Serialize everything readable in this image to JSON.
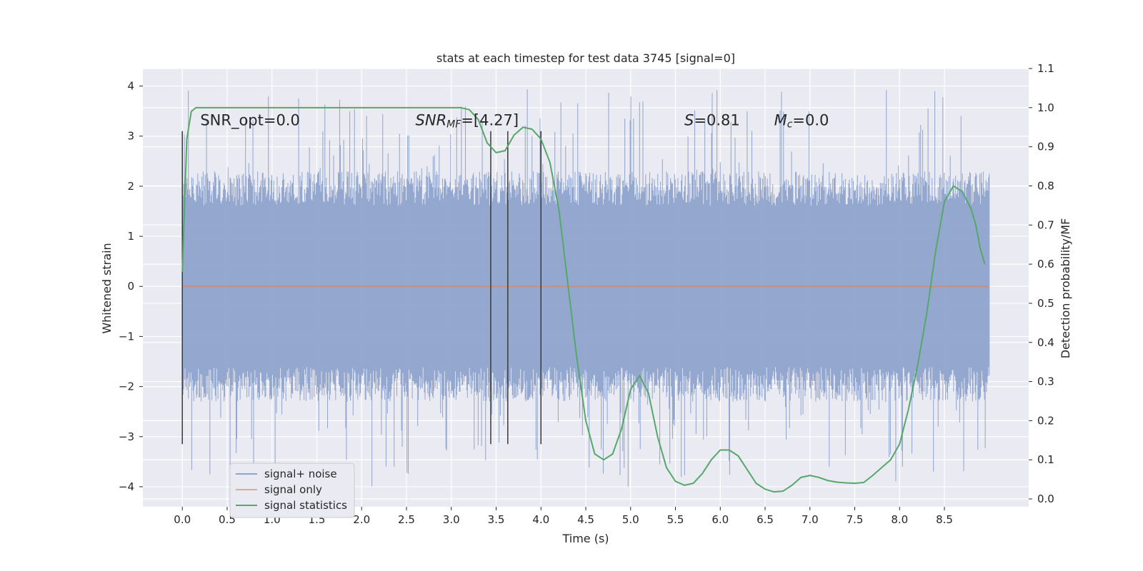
{
  "chart_data": {
    "type": "line",
    "title": "stats at each timestep for test data 3745 [signal=0]",
    "xlabel": "Time (s)",
    "ylabel": "Whitened strain",
    "y2label": "Detection probability/MF",
    "xlim": [
      -0.44,
      9.44
    ],
    "ylim": [
      -4.4,
      4.35
    ],
    "y2lim": [
      -0.02,
      1.1
    ],
    "xticks": [
      0.0,
      0.5,
      1.0,
      1.5,
      2.0,
      2.5,
      3.0,
      3.5,
      4.0,
      4.5,
      5.0,
      5.5,
      6.0,
      6.5,
      7.0,
      7.5,
      8.0,
      8.5
    ],
    "xtick_labels": [
      "0.0",
      "0.5",
      "1.0",
      "1.5",
      "2.0",
      "2.5",
      "3.0",
      "3.5",
      "4.0",
      "4.5",
      "5.0",
      "5.5",
      "6.0",
      "6.5",
      "7.0",
      "7.5",
      "8.0",
      "8.5"
    ],
    "yticks": [
      4,
      3,
      2,
      1,
      0,
      -1,
      -2,
      -3,
      -4
    ],
    "ytick_labels": [
      "4",
      "3",
      "2",
      "1",
      "0",
      "−1",
      "−2",
      "−3",
      "−4"
    ],
    "y2ticks": [
      1.1,
      1.0,
      0.9,
      0.8,
      0.7,
      0.6,
      0.5,
      0.4,
      0.3,
      0.2,
      0.1,
      0.0
    ],
    "y2tick_labels": [
      "1.1",
      "1.0",
      "0.9",
      "0.8",
      "0.7",
      "0.6",
      "0.5",
      "0.4",
      "0.3",
      "0.2",
      "0.1",
      "0.0"
    ],
    "grid": true,
    "legend_position": "lower-left",
    "noise_seed": 3745,
    "noise_time_range": [
      0.0,
      9.0
    ],
    "noise_envelope": {
      "typical_max": 2.3,
      "peak_max": 3.95,
      "typical_min": -2.3,
      "peak_min": -4.0
    },
    "series": [
      {
        "name": "signal+ noise",
        "color": "#8fa4cc",
        "axis": "left",
        "kind": "noise_band"
      },
      {
        "name": "signal only",
        "color": "#dd8452",
        "axis": "left",
        "x": [
          0.0,
          9.0
        ],
        "y": [
          0.0,
          0.0
        ]
      },
      {
        "name": "signal statistics",
        "color": "#55a868",
        "axis": "right",
        "x": [
          0.0,
          0.05,
          0.1,
          0.15,
          0.2,
          0.3,
          0.5,
          1.0,
          1.5,
          2.0,
          2.5,
          3.0,
          3.1,
          3.2,
          3.3,
          3.4,
          3.5,
          3.6,
          3.7,
          3.8,
          3.9,
          4.0,
          4.1,
          4.2,
          4.3,
          4.4,
          4.5,
          4.6,
          4.7,
          4.8,
          4.9,
          5.0,
          5.1,
          5.2,
          5.3,
          5.4,
          5.5,
          5.6,
          5.7,
          5.8,
          5.9,
          6.0,
          6.1,
          6.2,
          6.3,
          6.4,
          6.5,
          6.6,
          6.7,
          6.8,
          6.9,
          7.0,
          7.1,
          7.2,
          7.3,
          7.4,
          7.5,
          7.6,
          7.7,
          7.8,
          7.9,
          8.0,
          8.1,
          8.2,
          8.3,
          8.4,
          8.5,
          8.6,
          8.7,
          8.8,
          8.85,
          8.9,
          8.95
        ],
        "y": [
          0.58,
          0.92,
          0.99,
          1.0,
          1.0,
          1.0,
          1.0,
          1.0,
          1.0,
          1.0,
          1.0,
          1.0,
          1.0,
          0.995,
          0.97,
          0.91,
          0.885,
          0.89,
          0.93,
          0.95,
          0.945,
          0.92,
          0.86,
          0.74,
          0.55,
          0.36,
          0.2,
          0.115,
          0.1,
          0.115,
          0.18,
          0.28,
          0.315,
          0.27,
          0.16,
          0.08,
          0.045,
          0.035,
          0.04,
          0.065,
          0.1,
          0.125,
          0.125,
          0.11,
          0.075,
          0.04,
          0.025,
          0.018,
          0.02,
          0.035,
          0.055,
          0.06,
          0.055,
          0.047,
          0.043,
          0.041,
          0.04,
          0.042,
          0.06,
          0.08,
          0.1,
          0.14,
          0.23,
          0.34,
          0.47,
          0.63,
          0.76,
          0.8,
          0.785,
          0.74,
          0.7,
          0.64,
          0.6
        ]
      }
    ],
    "event_markers": {
      "x": [
        0.0,
        3.44,
        3.63,
        4.0
      ],
      "y_range": [
        -3.15,
        3.1
      ]
    },
    "annotations": [
      {
        "x": 0.2,
        "y": 3.1,
        "parts": [
          {
            "text": "SNR_opt=0.0",
            "italic": false
          }
        ]
      },
      {
        "x": 2.6,
        "y": 3.1,
        "parts": [
          {
            "text": "SNR",
            "italic": true
          },
          {
            "text": "MF",
            "italic": true,
            "sub": true
          },
          {
            "text": "=[4.27]",
            "italic": false
          }
        ]
      },
      {
        "x": 5.6,
        "y": 3.1,
        "parts": [
          {
            "text": "S",
            "italic": true
          },
          {
            "text": "=0.81",
            "italic": false
          }
        ]
      },
      {
        "x": 6.6,
        "y": 3.1,
        "parts": [
          {
            "text": "M",
            "italic": true
          },
          {
            "text": "c",
            "italic": true,
            "sub": true
          },
          {
            "text": "=0.0",
            "italic": false
          }
        ]
      }
    ]
  }
}
